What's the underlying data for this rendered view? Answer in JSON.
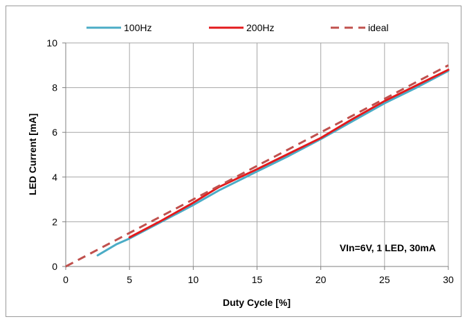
{
  "chart_data": {
    "type": "line",
    "title": "",
    "xlabel": "Duty Cycle [%]",
    "ylabel": "LED Current [mA]",
    "xlim": [
      0,
      30
    ],
    "ylim": [
      0,
      10
    ],
    "x_ticks": [
      0,
      5,
      10,
      15,
      20,
      25,
      30
    ],
    "y_ticks": [
      0,
      2,
      4,
      6,
      8,
      10
    ],
    "grid": true,
    "legend_position": "top",
    "annotation": "VIn=6V, 1 LED, 30mA",
    "series": [
      {
        "name": "100Hz",
        "color": "#4bacc6",
        "style": "solid",
        "x": [
          2.5,
          4,
          5,
          7.5,
          10,
          12,
          15,
          17.5,
          20,
          22.5,
          25,
          27.5,
          30
        ],
        "y": [
          0.5,
          1.0,
          1.25,
          2.0,
          2.75,
          3.4,
          4.25,
          4.95,
          5.7,
          6.5,
          7.3,
          8.0,
          8.75
        ]
      },
      {
        "name": "200Hz",
        "color": "#e31a1c",
        "style": "solid",
        "x": [
          5,
          7.5,
          10,
          12,
          15,
          17.5,
          20,
          22.5,
          25,
          27.5,
          30
        ],
        "y": [
          1.3,
          2.05,
          2.85,
          3.55,
          4.35,
          5.05,
          5.75,
          6.6,
          7.4,
          8.1,
          8.8
        ]
      },
      {
        "name": "ideal",
        "color": "#c0504d",
        "style": "dashed",
        "x": [
          0,
          30
        ],
        "y": [
          0,
          9.0
        ]
      }
    ]
  }
}
